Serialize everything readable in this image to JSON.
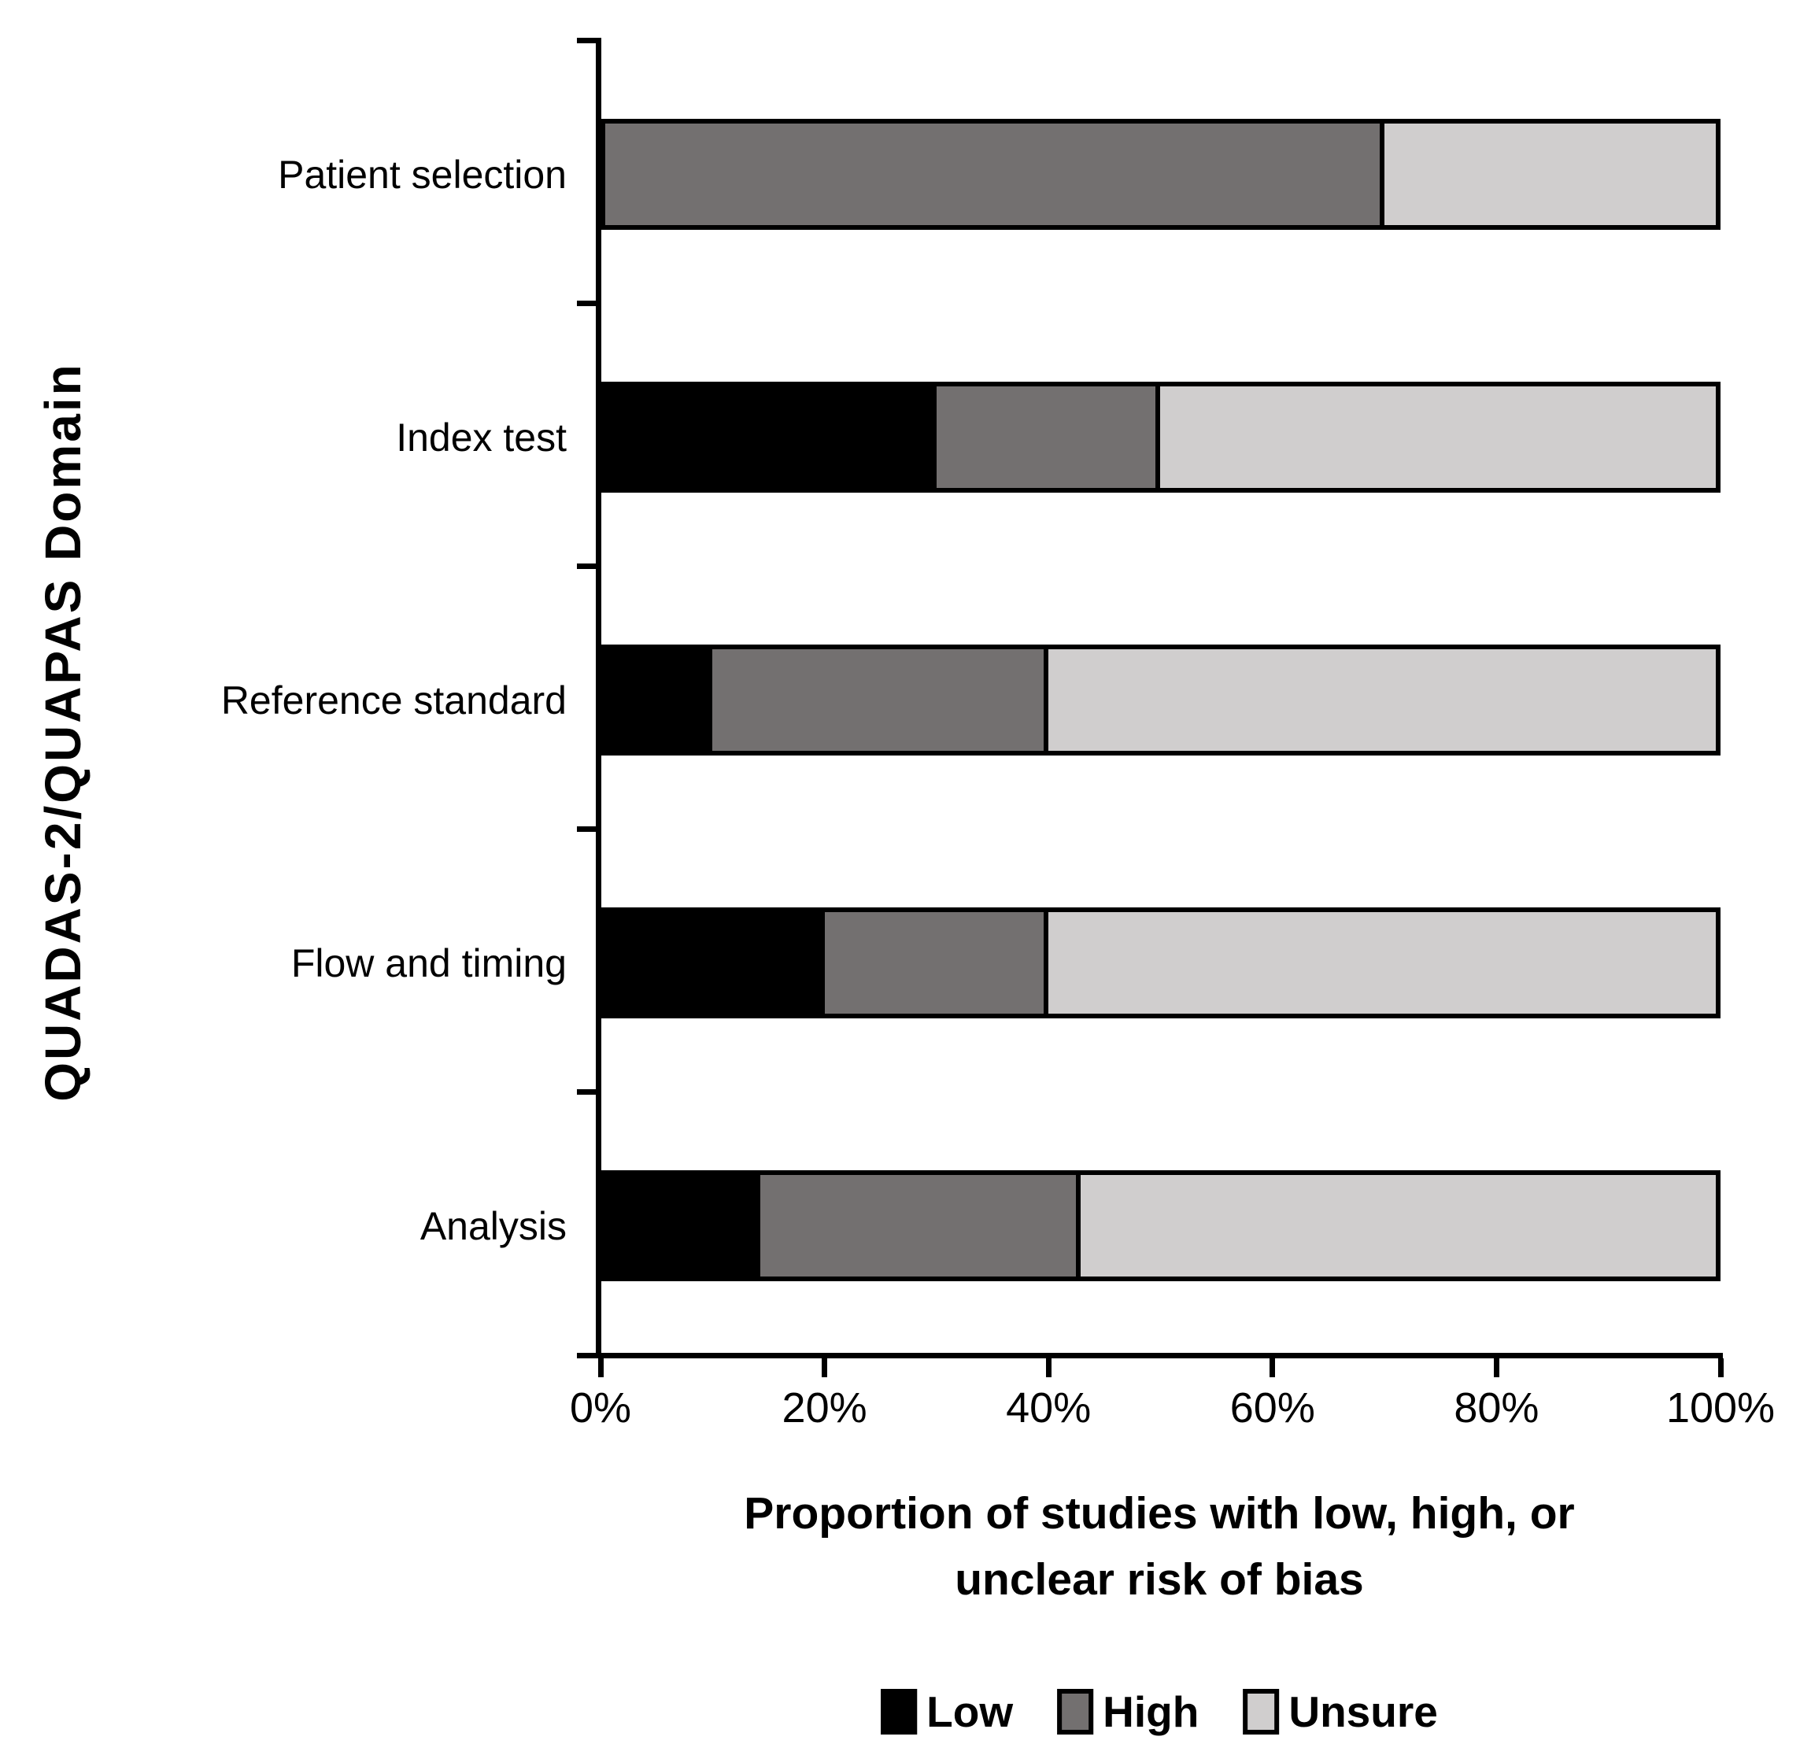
{
  "chart_data": {
    "type": "bar",
    "orientation": "horizontal",
    "stacked": true,
    "categories": [
      "Patient selection",
      "Index test",
      "Reference standard",
      "Flow and timing",
      "Analysis"
    ],
    "series": [
      {
        "name": "Low",
        "color": "#000000",
        "values": [
          0,
          30,
          10,
          20,
          14.3
        ]
      },
      {
        "name": "High",
        "color": "#737070",
        "values": [
          70,
          20,
          30,
          20,
          28.6
        ]
      },
      {
        "name": "Unsure",
        "color": "#D0CECE",
        "values": [
          30,
          50,
          60,
          60,
          57.1
        ]
      }
    ],
    "xlabel": "Proportion of studies with low, high, or unclear risk of bias",
    "ylabel": "QUADAS-2/QUAPAS Domain",
    "x_ticks": [
      "0%",
      "20%",
      "40%",
      "60%",
      "80%",
      "100%"
    ],
    "xlim": [
      0,
      100
    ],
    "grid": false,
    "legend_position": "bottom"
  }
}
